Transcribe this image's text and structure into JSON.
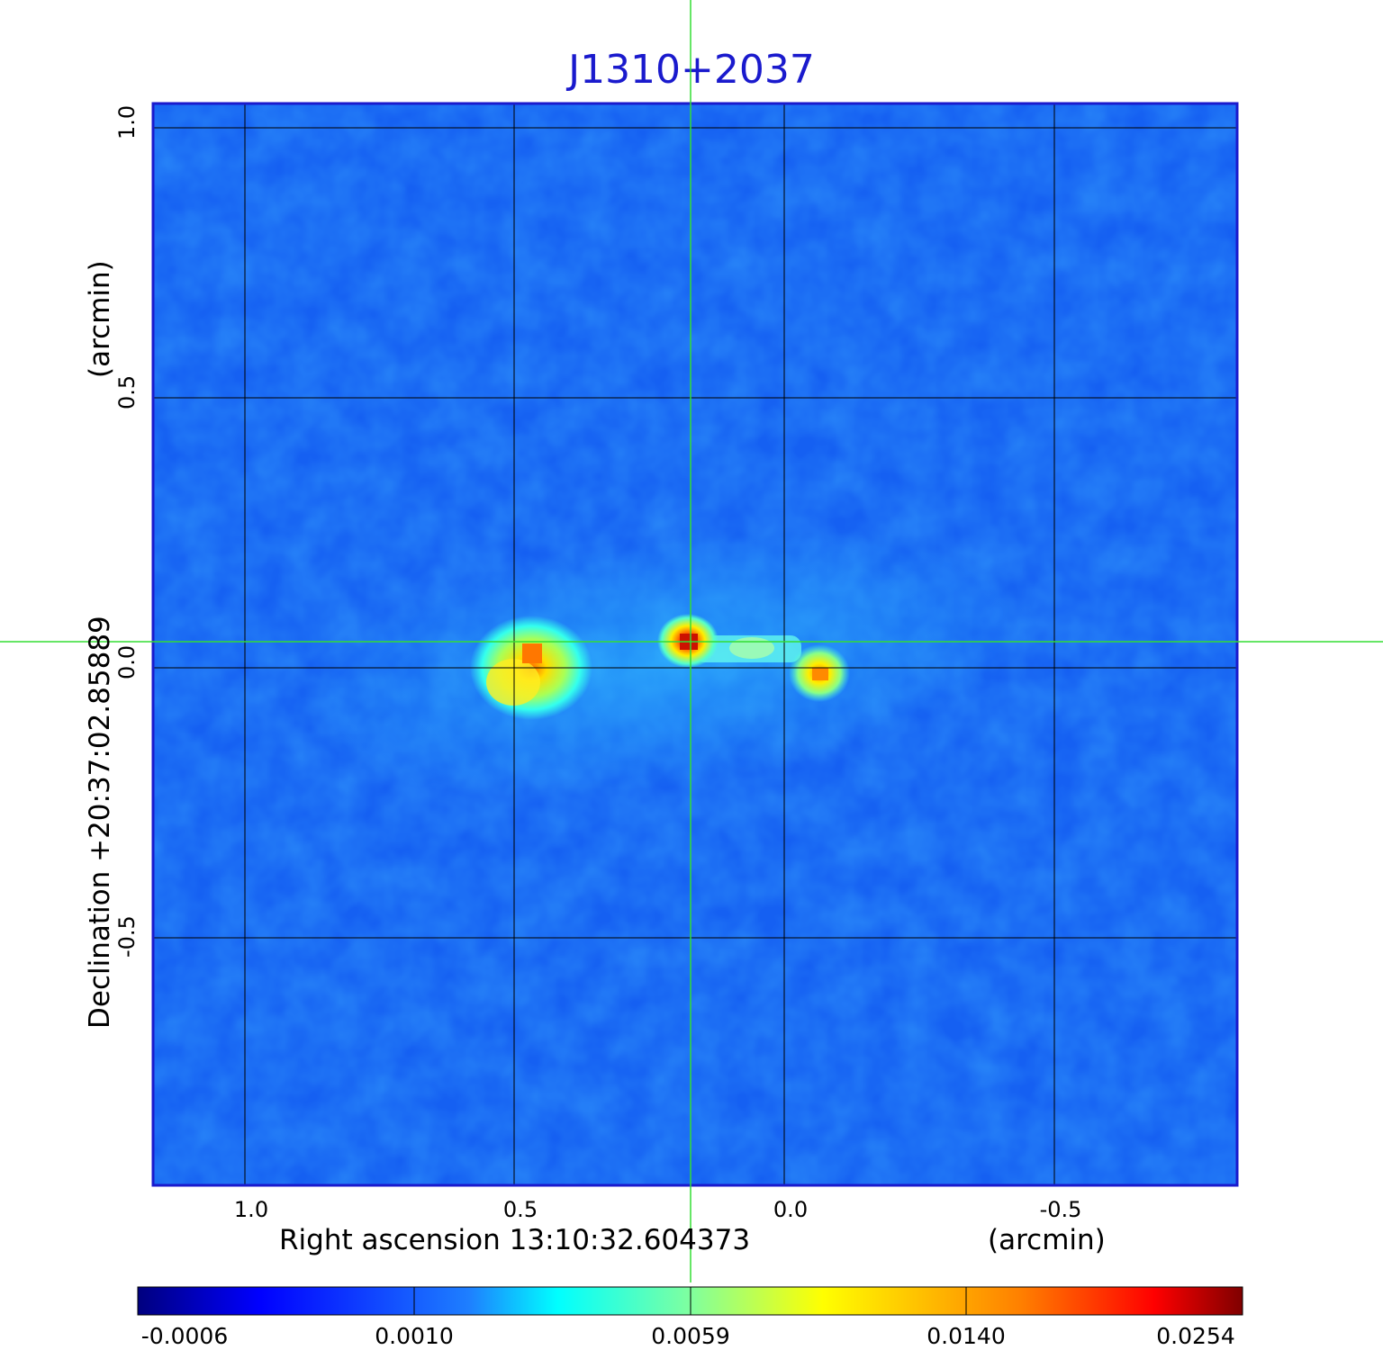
{
  "title": "J1310+2037",
  "x_axis": {
    "label": "Right ascension  13:10:32.604373",
    "unit": "(arcmin)",
    "ticks": [
      "1.0",
      "0.5",
      "0.0",
      "-0.5"
    ]
  },
  "y_axis": {
    "label": "Declination  +20:37:02.85889",
    "unit": "(arcmin)",
    "ticks": [
      "1.0",
      "0.5",
      "0.0",
      "-0.5"
    ]
  },
  "colorbar": {
    "ticks": [
      "-0.0006",
      "0.0010",
      "0.0059",
      "0.0140",
      "0.0254"
    ]
  },
  "colors": {
    "title": "#1a1acd",
    "frame": "#1a1acd",
    "crosshair": "#33dd33",
    "grid": "#000000"
  }
}
